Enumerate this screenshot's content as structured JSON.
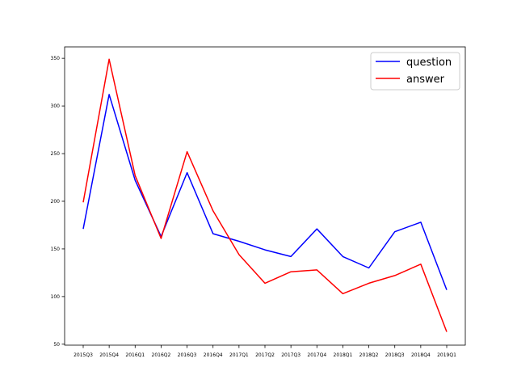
{
  "chart_data": {
    "type": "line",
    "title": "",
    "xlabel": "",
    "ylabel": "",
    "categories": [
      "2015Q3",
      "2015Q4",
      "2016Q1",
      "2016Q2",
      "2016Q3",
      "2016Q4",
      "2017Q1",
      "2017Q2",
      "2017Q3",
      "2017Q4",
      "2018Q1",
      "2018Q2",
      "2018Q3",
      "2018Q4",
      "2019Q1"
    ],
    "series": [
      {
        "name": "question",
        "color": "#0000ff",
        "values": [
          171,
          312,
          222,
          163,
          230,
          166,
          158,
          149,
          142,
          171,
          142,
          130,
          168,
          178,
          107
        ]
      },
      {
        "name": "answer",
        "color": "#ff0000",
        "values": [
          199,
          349,
          227,
          161,
          252,
          190,
          144,
          114,
          126,
          128,
          103,
          114,
          122,
          134,
          63
        ]
      }
    ],
    "yticks": [
      50,
      100,
      150,
      200,
      250,
      300,
      350
    ],
    "ylim": [
      49,
      362
    ],
    "grid": false,
    "legend": "upper right"
  }
}
